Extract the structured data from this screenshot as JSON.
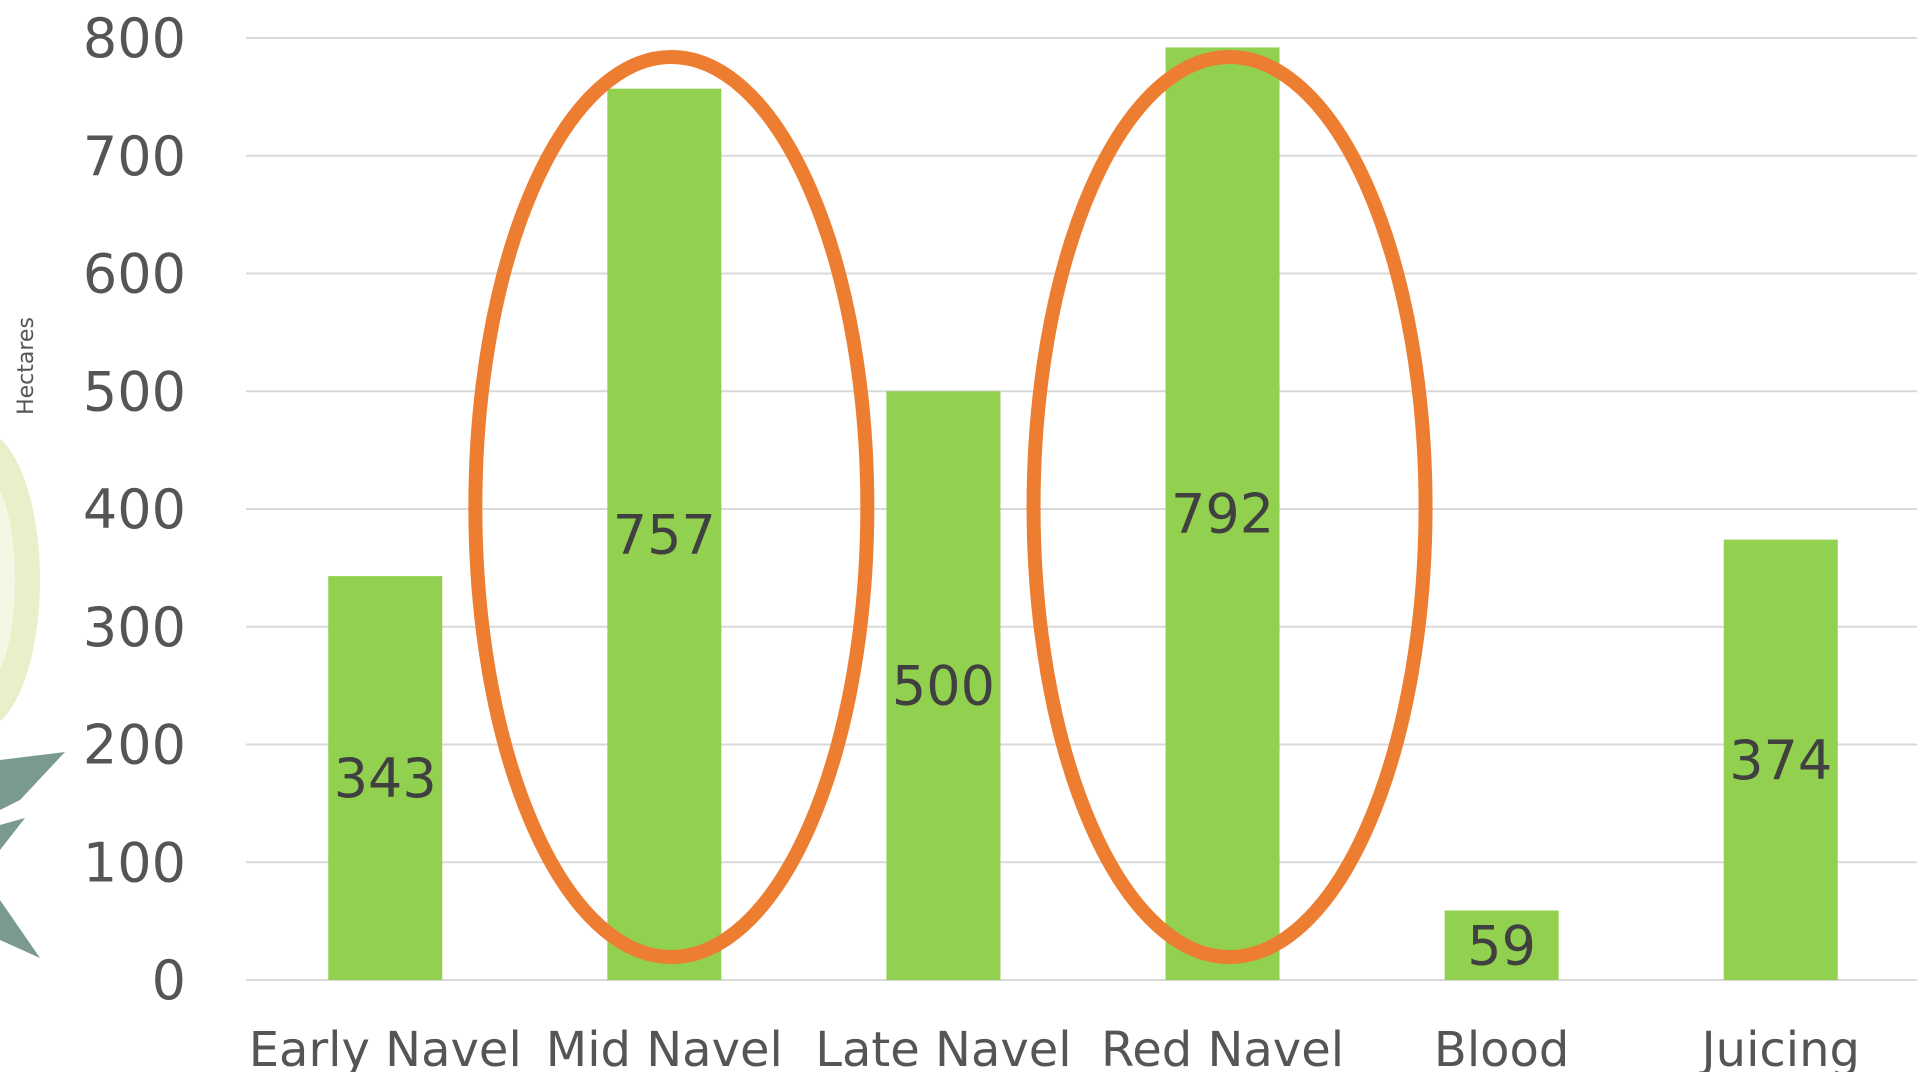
{
  "chart_data": {
    "type": "bar",
    "title": "",
    "xlabel": "",
    "ylabel": "Hectares",
    "categories": [
      "Early Navel",
      "Mid Navel",
      "Late Navel",
      "Red Navel",
      "Blood",
      "Juicing"
    ],
    "values": [
      343,
      757,
      500,
      792,
      59,
      374
    ],
    "data_labels": [
      "343",
      "757",
      "500",
      "792",
      "59",
      "374"
    ],
    "ylim": [
      0,
      800
    ],
    "yticks": [
      "0",
      "100",
      "200",
      "300",
      "400",
      "500",
      "600",
      "700",
      "800"
    ],
    "grid": true,
    "legend": "none",
    "highlighted_categories": [
      "Mid Navel",
      "Red Navel"
    ],
    "colors": {
      "bar": "#92d050",
      "highlight": "#ed7d31",
      "grid": "#d9d9d9",
      "text": "#555555",
      "data_label": "#404040",
      "decor_pale": "#e9efc9",
      "decor_leaf": "#7a9a8e"
    },
    "decoration": "orange-slice-watermark"
  }
}
